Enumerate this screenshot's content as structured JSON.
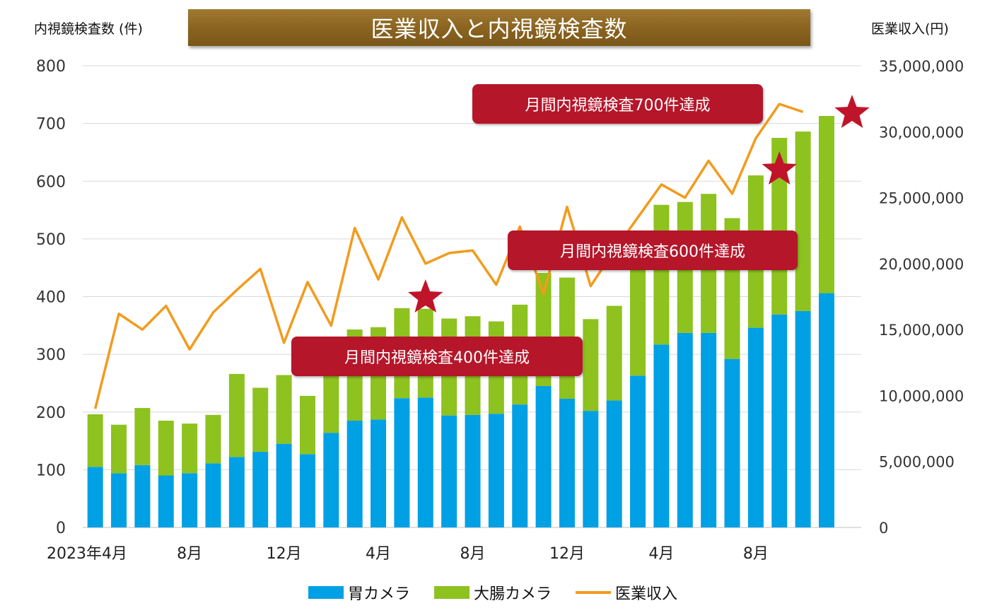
{
  "title": "医業収入と内視鏡検査数",
  "left_axis_title": "内視鏡検査数 (件)",
  "right_axis_title": "医業収入(円)",
  "callouts": {
    "c700": "月間内視鏡検査700件達成",
    "c600": "月間内視鏡検査600件達成",
    "c400": "月間内視鏡検査400件達成"
  },
  "legend": [
    {
      "label": "胃カメラ",
      "color": "#00a0e4",
      "type": "bar"
    },
    {
      "label": "大腸カメラ",
      "color": "#8dc21f",
      "type": "bar"
    },
    {
      "label": "医業収入",
      "color": "#f29b1d",
      "type": "line"
    }
  ],
  "chart_data": {
    "type": "bar",
    "stacked": true,
    "categories": [
      "2023年4月",
      "5",
      "6",
      "7",
      "8月",
      "9",
      "10",
      "11",
      "12月",
      "1",
      "2",
      "3",
      "4月",
      "5",
      "6",
      "7",
      "8月",
      "9",
      "10",
      "11",
      "12月",
      "1",
      "2",
      "3",
      "4月",
      "5",
      "6",
      "7",
      "8月",
      "9",
      "10",
      "11",
      "12月"
    ],
    "tick_labels": [
      {
        "index": 0,
        "label": "2023年4月"
      },
      {
        "index": 4,
        "label": "8月"
      },
      {
        "index": 8,
        "label": "12月"
      },
      {
        "index": 12,
        "label": "4月"
      },
      {
        "index": 16,
        "label": "8月"
      },
      {
        "index": 20,
        "label": "12月"
      },
      {
        "index": 24,
        "label": "4月"
      },
      {
        "index": 28,
        "label": "8月"
      }
    ],
    "series": [
      {
        "name": "胃カメラ",
        "color": "#00a0e4",
        "values": [
          105,
          94,
          108,
          90,
          94,
          111,
          122,
          131,
          145,
          127,
          164,
          185,
          187,
          224,
          225,
          194,
          195,
          197,
          213,
          245,
          223,
          202,
          220,
          263,
          317,
          337,
          337,
          292,
          346,
          369,
          375,
          406,
          0
        ]
      },
      {
        "name": "大腸カメラ",
        "color": "#8dc21f",
        "values": [
          91,
          84,
          99,
          95,
          86,
          84,
          144,
          111,
          119,
          101,
          116,
          158,
          160,
          156,
          154,
          168,
          171,
          160,
          173,
          196,
          210,
          159,
          164,
          187,
          242,
          227,
          241,
          244,
          264,
          306,
          311,
          307,
          0
        ]
      }
    ],
    "line_series": {
      "name": "医業収入",
      "color": "#f29b1d",
      "axis": "right",
      "values": [
        9000000,
        16200000,
        15000000,
        16800000,
        13500000,
        16300000,
        18000000,
        19600000,
        14000000,
        18600000,
        15300000,
        22700000,
        18800000,
        23500000,
        20000000,
        20800000,
        21000000,
        18400000,
        22800000,
        17700000,
        24300000,
        18300000,
        21000000,
        23500000,
        26000000,
        25000000,
        27800000,
        25300000,
        29500000,
        32100000,
        31500000,
        null,
        null
      ]
    },
    "stars_at_index": [
      14,
      29,
      32
    ],
    "y_left": {
      "min": 0,
      "max": 800,
      "ticks": [
        0,
        100,
        200,
        300,
        400,
        500,
        600,
        700,
        800
      ]
    },
    "y_right": {
      "min": 0,
      "max": 35000000,
      "ticks": [
        "0",
        "5,000,000",
        "10,000,000",
        "15,000,000",
        "20,000,000",
        "25,000,000",
        "30,000,000",
        "35,000,000"
      ],
      "tick_values": [
        0,
        5000000,
        10000000,
        15000000,
        20000000,
        25000000,
        30000000,
        35000000
      ]
    },
    "grid": true,
    "legend_position": "bottom"
  }
}
